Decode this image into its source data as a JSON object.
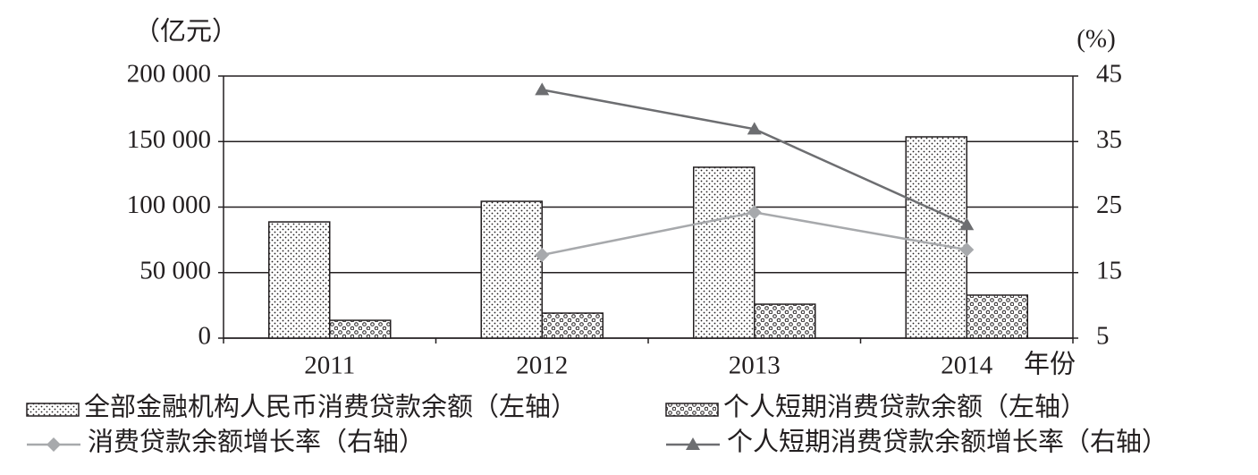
{
  "chart_data": {
    "type": "bar",
    "y_unit_label": "（亿元）",
    "y2_unit_label": "(%)",
    "x_unit_label": "年份",
    "categories": [
      "2011",
      "2012",
      "2013",
      "2014"
    ],
    "ylim": [
      0,
      200000
    ],
    "yticks": [
      {
        "value": 0,
        "label": "0"
      },
      {
        "value": 50000,
        "label": "50 000"
      },
      {
        "value": 100000,
        "label": "100 000"
      },
      {
        "value": 150000,
        "label": "150 000"
      },
      {
        "value": 200000,
        "label": "200 000"
      }
    ],
    "y2lim": [
      5,
      45
    ],
    "y2ticks": [
      5,
      15,
      25,
      35,
      45
    ],
    "grid": true,
    "series": [
      {
        "name": "全部金融机构人民币消费贷款余额（左轴）",
        "type": "bar",
        "color": "#231f20",
        "pattern": "fine-dots",
        "values": [
          88700,
          104400,
          130400,
          153600
        ]
      },
      {
        "name": "个人短期消费贷款余额（左轴）",
        "type": "bar",
        "color": "#231f20",
        "pattern": "coarse-dots",
        "values": [
          13600,
          19100,
          25900,
          32800
        ]
      },
      {
        "name": "消费贷款余额增长率（右轴）",
        "type": "line",
        "axis": "y2",
        "marker": "diamond",
        "color": "#a7a9ac",
        "values": [
          null,
          17.7,
          24.2,
          18.5
        ]
      },
      {
        "name": "个人短期消费贷款余额增长率（右轴）",
        "type": "line",
        "axis": "y2",
        "marker": "triangle",
        "color": "#6d6e71",
        "values": [
          null,
          42.9,
          36.9,
          22.3
        ]
      }
    ]
  }
}
